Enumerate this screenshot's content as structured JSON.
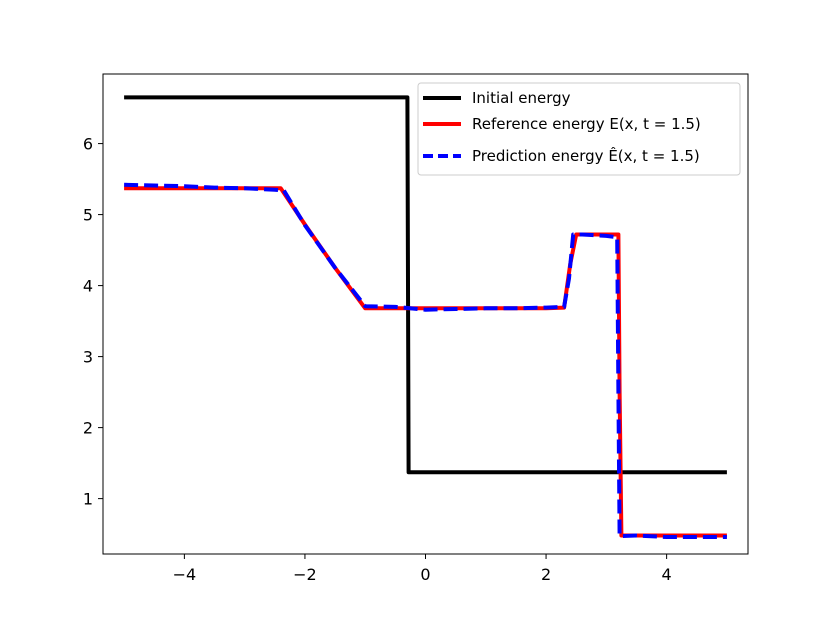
{
  "chart_data": {
    "type": "line",
    "xlim": [
      -5.35,
      5.35
    ],
    "ylim": [
      0.22,
      6.98
    ],
    "x_ticks": [
      -4,
      -2,
      0,
      2,
      4
    ],
    "x_tick_labels": [
      "−4",
      "−2",
      "0",
      "2",
      "4"
    ],
    "y_ticks": [
      1,
      2,
      3,
      4,
      5,
      6
    ],
    "y_tick_labels": [
      "1",
      "2",
      "3",
      "4",
      "5",
      "6"
    ],
    "grid": false,
    "legend_position": "top-right",
    "series": [
      {
        "name": "Initial energy",
        "color": "#000000",
        "style": "solid",
        "x": [
          -5.0,
          -0.3,
          -0.3,
          -0.28,
          5.0
        ],
        "y": [
          6.65,
          6.65,
          6.65,
          1.37,
          1.37
        ]
      },
      {
        "name": "Reference energy E(x, t = 1.5)",
        "color": "#ff0000",
        "style": "solid",
        "x": [
          -5.0,
          -4.0,
          -3.0,
          -2.4,
          -2.0,
          -1.5,
          -1.0,
          0.0,
          1.0,
          2.0,
          2.3,
          2.4,
          2.5,
          3.2,
          3.22,
          3.25,
          4.0,
          5.0
        ],
        "y": [
          5.37,
          5.37,
          5.37,
          5.37,
          4.86,
          4.25,
          3.68,
          3.68,
          3.68,
          3.68,
          3.69,
          4.3,
          4.72,
          4.72,
          2.5,
          0.48,
          0.48,
          0.48
        ]
      },
      {
        "name": "Prediction energy Ê(x, t = 1.5)",
        "color": "#0000ff",
        "style": "dashed",
        "x": [
          -5.0,
          -4.5,
          -4.0,
          -3.5,
          -3.0,
          -2.5,
          -2.35,
          -2.0,
          -1.5,
          -1.0,
          -0.5,
          0.0,
          0.5,
          1.0,
          1.5,
          2.0,
          2.3,
          2.38,
          2.45,
          2.6,
          3.0,
          3.18,
          3.2,
          3.22,
          3.5,
          4.0,
          4.5,
          5.0
        ],
        "y": [
          5.42,
          5.41,
          5.4,
          5.38,
          5.37,
          5.35,
          5.34,
          4.85,
          4.25,
          3.71,
          3.7,
          3.66,
          3.67,
          3.68,
          3.68,
          3.69,
          3.7,
          4.1,
          4.72,
          4.72,
          4.7,
          4.68,
          2.5,
          0.47,
          0.48,
          0.46,
          0.46,
          0.46
        ]
      }
    ]
  },
  "legend": {
    "items": [
      {
        "label": "Initial energy",
        "color": "#000000",
        "style": "solid"
      },
      {
        "label": "Reference energy E(x, t = 1.5)",
        "color": "#ff0000",
        "style": "solid"
      },
      {
        "label": "Prediction energy Ê(x, t = 1.5)",
        "color": "#0000ff",
        "style": "dashed"
      }
    ]
  }
}
